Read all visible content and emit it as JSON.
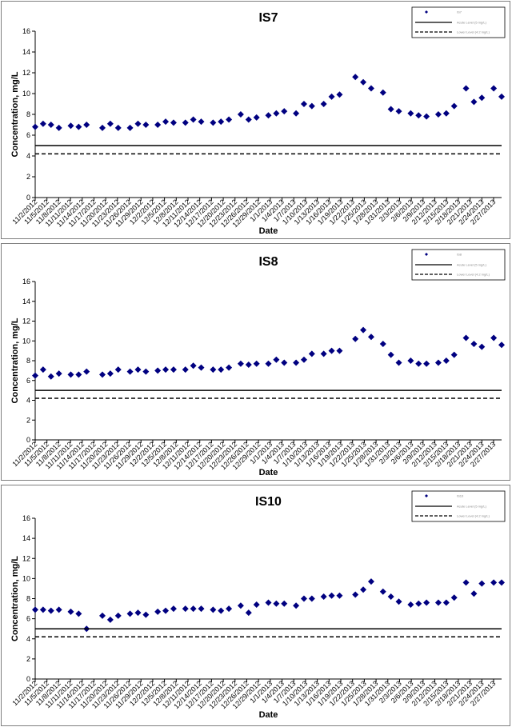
{
  "chart_data": [
    {
      "type": "scatter",
      "title": "IS7",
      "xlabel": "Date",
      "ylabel": "Concentration, mg/L",
      "ylim": [
        0,
        16
      ],
      "yticks": [
        0,
        2,
        4,
        6,
        8,
        10,
        12,
        14,
        16
      ],
      "xlim": [
        "2012-11-02",
        "2013-02-28"
      ],
      "x_tick_labels": [
        "11/2/2012",
        "11/5/2012",
        "11/8/2012",
        "11/11/2012",
        "11/14/2012",
        "11/17/2012",
        "11/20/2012",
        "11/23/2012",
        "11/26/2012",
        "11/29/2012",
        "12/2/2012",
        "12/5/2012",
        "12/8/2012",
        "12/11/2012",
        "12/14/2012",
        "12/17/2012",
        "12/20/2012",
        "12/23/2012",
        "12/26/2012",
        "12/29/2012",
        "1/1/2013",
        "1/4/2013",
        "1/7/2013",
        "1/10/2013",
        "1/13/2013",
        "1/16/2013",
        "1/19/2013",
        "1/22/2013",
        "1/25/2013",
        "1/28/2013",
        "1/31/2013",
        "2/3/2013",
        "2/6/2013",
        "2/9/2013",
        "2/12/2013",
        "2/15/2013",
        "2/18/2013",
        "2/21/2013",
        "2/24/2013",
        "2/27/2013"
      ],
      "legend": {
        "placement": "top-right",
        "entries": [
          "IS7",
          "Acute Level (5 mg/L)",
          "Lower Level (4.2 mg/L)"
        ]
      },
      "series": [
        {
          "name": "IS7",
          "style": "diamond-marker",
          "color": "#000080",
          "points": [
            [
              "2012-11-02",
              6.8
            ],
            [
              "2012-11-04",
              7.1
            ],
            [
              "2012-11-06",
              7.0
            ],
            [
              "2012-11-08",
              6.7
            ],
            [
              "2012-11-11",
              6.9
            ],
            [
              "2012-11-13",
              6.8
            ],
            [
              "2012-11-15",
              7.0
            ],
            [
              "2012-11-19",
              6.7
            ],
            [
              "2012-11-21",
              7.1
            ],
            [
              "2012-11-23",
              6.7
            ],
            [
              "2012-11-26",
              6.7
            ],
            [
              "2012-11-28",
              7.1
            ],
            [
              "2012-11-30",
              7.0
            ],
            [
              "2012-12-03",
              7.0
            ],
            [
              "2012-12-05",
              7.3
            ],
            [
              "2012-12-07",
              7.2
            ],
            [
              "2012-12-10",
              7.2
            ],
            [
              "2012-12-12",
              7.5
            ],
            [
              "2012-12-14",
              7.3
            ],
            [
              "2012-12-17",
              7.2
            ],
            [
              "2012-12-19",
              7.3
            ],
            [
              "2012-12-21",
              7.5
            ],
            [
              "2012-12-24",
              8.0
            ],
            [
              "2012-12-26",
              7.5
            ],
            [
              "2012-12-28",
              7.7
            ],
            [
              "2012-12-31",
              7.9
            ],
            [
              "2013-01-02",
              8.1
            ],
            [
              "2013-01-04",
              8.3
            ],
            [
              "2013-01-07",
              8.1
            ],
            [
              "2013-01-09",
              9.0
            ],
            [
              "2013-01-11",
              8.8
            ],
            [
              "2013-01-14",
              9.0
            ],
            [
              "2013-01-16",
              9.7
            ],
            [
              "2013-01-18",
              9.9
            ],
            [
              "2013-01-22",
              11.6
            ],
            [
              "2013-01-24",
              11.1
            ],
            [
              "2013-01-26",
              10.5
            ],
            [
              "2013-01-29",
              10.1
            ],
            [
              "2013-01-31",
              8.5
            ],
            [
              "2013-02-02",
              8.3
            ],
            [
              "2013-02-05",
              8.1
            ],
            [
              "2013-02-07",
              7.9
            ],
            [
              "2013-02-09",
              7.8
            ],
            [
              "2013-02-12",
              8.0
            ],
            [
              "2013-02-14",
              8.1
            ],
            [
              "2013-02-16",
              8.8
            ],
            [
              "2013-02-19",
              10.5
            ],
            [
              "2013-02-21",
              9.2
            ],
            [
              "2013-02-23",
              9.6
            ],
            [
              "2013-02-26",
              10.5
            ],
            [
              "2013-02-28",
              9.7
            ]
          ]
        },
        {
          "name": "Acute Level (5 mg/L)",
          "style": "solid-line",
          "color": "#000000",
          "points": [
            [
              "2012-11-02",
              5.0
            ],
            [
              "2013-02-28",
              5.0
            ]
          ]
        },
        {
          "name": "Lower Level (4.2 mg/L)",
          "style": "dashed-line",
          "color": "#000000",
          "points": [
            [
              "2012-11-02",
              4.2
            ],
            [
              "2013-02-28",
              4.2
            ]
          ]
        }
      ]
    },
    {
      "type": "scatter",
      "title": "IS8",
      "xlabel": "Date",
      "ylabel": "Concentration, mg/L",
      "ylim": [
        0,
        16
      ],
      "yticks": [
        0,
        2,
        4,
        6,
        8,
        10,
        12,
        14,
        16
      ],
      "xlim": [
        "2012-11-02",
        "2013-02-28"
      ],
      "x_tick_labels": [
        "11/2/2012",
        "11/5/2012",
        "11/8/2012",
        "11/11/2012",
        "11/14/2012",
        "11/17/2012",
        "11/20/2012",
        "11/23/2012",
        "11/26/2012",
        "11/29/2012",
        "12/2/2012",
        "12/5/2012",
        "12/8/2012",
        "12/11/2012",
        "12/14/2012",
        "12/17/2012",
        "12/20/2012",
        "12/23/2012",
        "12/26/2012",
        "12/29/2012",
        "1/1/2013",
        "1/4/2013",
        "1/7/2013",
        "1/10/2013",
        "1/13/2013",
        "1/16/2013",
        "1/19/2013",
        "1/22/2013",
        "1/25/2013",
        "1/28/2013",
        "1/31/2013",
        "2/3/2013",
        "2/6/2013",
        "2/9/2013",
        "2/12/2013",
        "2/15/2013",
        "2/18/2013",
        "2/21/2013",
        "2/24/2013",
        "2/27/2013"
      ],
      "legend": {
        "placement": "top-right",
        "entries": [
          "IS8",
          "Acute Level (5 mg/L)",
          "Lower Level (4.2 mg/L)"
        ]
      },
      "series": [
        {
          "name": "IS8",
          "style": "diamond-marker",
          "color": "#000080",
          "points": [
            [
              "2012-11-02",
              6.5
            ],
            [
              "2012-11-04",
              7.1
            ],
            [
              "2012-11-06",
              6.4
            ],
            [
              "2012-11-08",
              6.7
            ],
            [
              "2012-11-11",
              6.6
            ],
            [
              "2012-11-13",
              6.6
            ],
            [
              "2012-11-15",
              6.9
            ],
            [
              "2012-11-19",
              6.6
            ],
            [
              "2012-11-21",
              6.7
            ],
            [
              "2012-11-23",
              7.1
            ],
            [
              "2012-11-26",
              6.9
            ],
            [
              "2012-11-28",
              7.1
            ],
            [
              "2012-11-30",
              6.9
            ],
            [
              "2012-12-03",
              7.0
            ],
            [
              "2012-12-05",
              7.1
            ],
            [
              "2012-12-07",
              7.1
            ],
            [
              "2012-12-10",
              7.1
            ],
            [
              "2012-12-12",
              7.5
            ],
            [
              "2012-12-14",
              7.3
            ],
            [
              "2012-12-17",
              7.1
            ],
            [
              "2012-12-19",
              7.1
            ],
            [
              "2012-12-21",
              7.3
            ],
            [
              "2012-12-24",
              7.7
            ],
            [
              "2012-12-26",
              7.6
            ],
            [
              "2012-12-28",
              7.7
            ],
            [
              "2012-12-31",
              7.7
            ],
            [
              "2013-01-02",
              8.1
            ],
            [
              "2013-01-04",
              7.8
            ],
            [
              "2013-01-07",
              7.8
            ],
            [
              "2013-01-09",
              8.1
            ],
            [
              "2013-01-11",
              8.7
            ],
            [
              "2013-01-14",
              8.7
            ],
            [
              "2013-01-16",
              9.0
            ],
            [
              "2013-01-18",
              9.0
            ],
            [
              "2013-01-22",
              10.2
            ],
            [
              "2013-01-24",
              11.1
            ],
            [
              "2013-01-26",
              10.4
            ],
            [
              "2013-01-29",
              9.7
            ],
            [
              "2013-01-31",
              8.6
            ],
            [
              "2013-02-02",
              7.8
            ],
            [
              "2013-02-05",
              8.0
            ],
            [
              "2013-02-07",
              7.7
            ],
            [
              "2013-02-09",
              7.7
            ],
            [
              "2013-02-12",
              7.8
            ],
            [
              "2013-02-14",
              8.0
            ],
            [
              "2013-02-16",
              8.6
            ],
            [
              "2013-02-19",
              10.3
            ],
            [
              "2013-02-21",
              9.7
            ],
            [
              "2013-02-23",
              9.4
            ],
            [
              "2013-02-26",
              10.3
            ],
            [
              "2013-02-28",
              9.6
            ]
          ]
        },
        {
          "name": "Acute Level (5 mg/L)",
          "style": "solid-line",
          "color": "#000000",
          "points": [
            [
              "2012-11-02",
              5.0
            ],
            [
              "2013-02-28",
              5.0
            ]
          ]
        },
        {
          "name": "Lower Level (4.2 mg/L)",
          "style": "dashed-line",
          "color": "#000000",
          "points": [
            [
              "2012-11-02",
              4.2
            ],
            [
              "2013-02-28",
              4.2
            ]
          ]
        }
      ]
    },
    {
      "type": "scatter",
      "title": "IS10",
      "xlabel": "Date",
      "ylabel": "Concentration, mg/L",
      "ylim": [
        0,
        16
      ],
      "yticks": [
        0,
        2,
        4,
        6,
        8,
        10,
        12,
        14,
        16
      ],
      "xlim": [
        "2012-11-02",
        "2013-02-28"
      ],
      "x_tick_labels": [
        "11/2/2012",
        "11/5/2012",
        "11/8/2012",
        "11/11/2012",
        "11/14/2012",
        "11/17/2012",
        "11/20/2012",
        "11/23/2012",
        "11/26/2012",
        "11/29/2012",
        "12/2/2012",
        "12/5/2012",
        "12/8/2012",
        "12/11/2012",
        "12/14/2012",
        "12/17/2012",
        "12/20/2012",
        "12/23/2012",
        "12/26/2012",
        "12/29/2012",
        "1/1/2013",
        "1/4/2013",
        "1/7/2013",
        "1/10/2013",
        "1/13/2013",
        "1/16/2013",
        "1/19/2013",
        "1/22/2013",
        "1/25/2013",
        "1/28/2013",
        "1/31/2013",
        "2/3/2013",
        "2/6/2013",
        "2/9/2013",
        "2/12/2013",
        "2/15/2013",
        "2/18/2013",
        "2/21/2013",
        "2/24/2013",
        "2/27/2013"
      ],
      "legend": {
        "placement": "top-right",
        "entries": [
          "IS10",
          "Acute Level (5 mg/L)",
          "Lower Level (4.2 mg/L)"
        ]
      },
      "series": [
        {
          "name": "IS10",
          "style": "diamond-marker",
          "color": "#000080",
          "points": [
            [
              "2012-11-02",
              6.9
            ],
            [
              "2012-11-04",
              6.9
            ],
            [
              "2012-11-06",
              6.8
            ],
            [
              "2012-11-08",
              6.9
            ],
            [
              "2012-11-11",
              6.7
            ],
            [
              "2012-11-13",
              6.5
            ],
            [
              "2012-11-15",
              5.0
            ],
            [
              "2012-11-19",
              6.3
            ],
            [
              "2012-11-21",
              5.9
            ],
            [
              "2012-11-23",
              6.3
            ],
            [
              "2012-11-26",
              6.5
            ],
            [
              "2012-11-28",
              6.6
            ],
            [
              "2012-11-30",
              6.4
            ],
            [
              "2012-12-03",
              6.7
            ],
            [
              "2012-12-05",
              6.8
            ],
            [
              "2012-12-07",
              7.0
            ],
            [
              "2012-12-10",
              7.0
            ],
            [
              "2012-12-12",
              7.0
            ],
            [
              "2012-12-14",
              7.0
            ],
            [
              "2012-12-17",
              6.9
            ],
            [
              "2012-12-19",
              6.8
            ],
            [
              "2012-12-21",
              7.0
            ],
            [
              "2012-12-24",
              7.3
            ],
            [
              "2012-12-26",
              6.6
            ],
            [
              "2012-12-28",
              7.4
            ],
            [
              "2012-12-31",
              7.6
            ],
            [
              "2013-01-02",
              7.5
            ],
            [
              "2013-01-04",
              7.5
            ],
            [
              "2013-01-07",
              7.3
            ],
            [
              "2013-01-09",
              8.0
            ],
            [
              "2013-01-11",
              8.0
            ],
            [
              "2013-01-14",
              8.2
            ],
            [
              "2013-01-16",
              8.3
            ],
            [
              "2013-01-18",
              8.3
            ],
            [
              "2013-01-22",
              8.4
            ],
            [
              "2013-01-24",
              8.9
            ],
            [
              "2013-01-26",
              9.7
            ],
            [
              "2013-01-29",
              8.7
            ],
            [
              "2013-01-31",
              8.2
            ],
            [
              "2013-02-02",
              7.7
            ],
            [
              "2013-02-05",
              7.4
            ],
            [
              "2013-02-07",
              7.5
            ],
            [
              "2013-02-09",
              7.6
            ],
            [
              "2013-02-12",
              7.6
            ],
            [
              "2013-02-14",
              7.6
            ],
            [
              "2013-02-16",
              8.1
            ],
            [
              "2013-02-19",
              9.6
            ],
            [
              "2013-02-21",
              8.5
            ],
            [
              "2013-02-23",
              9.5
            ],
            [
              "2013-02-26",
              9.6
            ],
            [
              "2013-02-28",
              9.6
            ]
          ]
        },
        {
          "name": "Acute Level (5 mg/L)",
          "style": "solid-line",
          "color": "#000000",
          "points": [
            [
              "2012-11-02",
              5.0
            ],
            [
              "2013-02-28",
              5.0
            ]
          ]
        },
        {
          "name": "Lower Level (4.2 mg/L)",
          "style": "dashed-line",
          "color": "#000000",
          "points": [
            [
              "2012-11-02",
              4.2
            ],
            [
              "2013-02-28",
              4.2
            ]
          ]
        }
      ]
    }
  ]
}
